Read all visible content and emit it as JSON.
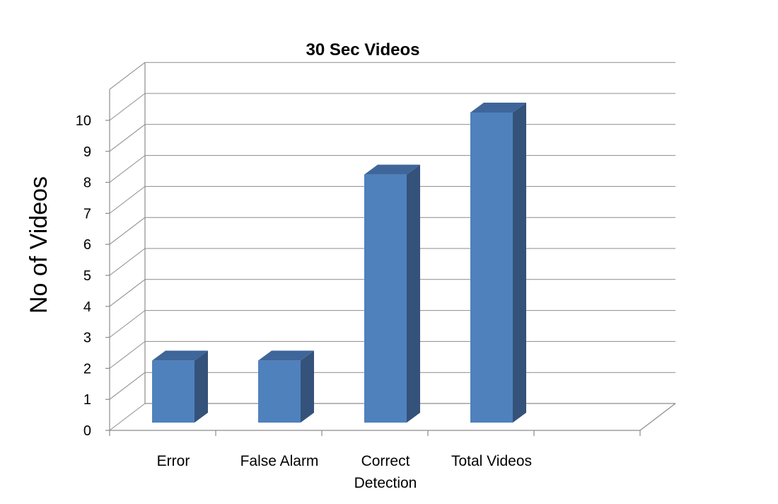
{
  "chart_data": {
    "type": "bar",
    "title": "30 Sec Videos",
    "xlabel": "",
    "ylabel": "No of Videos",
    "categories": [
      "Error",
      "False Alarm",
      "Correct Detection",
      "Total Videos"
    ],
    "category_lines": [
      [
        "Error"
      ],
      [
        "False Alarm"
      ],
      [
        "Correct",
        "Detection"
      ],
      [
        "Total Videos"
      ]
    ],
    "values": [
      2,
      2,
      8,
      10
    ],
    "ylim": [
      0,
      10
    ],
    "yticks": [
      0,
      1,
      2,
      3,
      4,
      5,
      6,
      7,
      8,
      9,
      10
    ],
    "grid": true,
    "legend": "none",
    "style": "3d-column",
    "colors": {
      "bar_front": "#4f81bd",
      "bar_side": "#34527a",
      "bar_top": "#3f669a",
      "grid": "#8c8c8c"
    }
  }
}
